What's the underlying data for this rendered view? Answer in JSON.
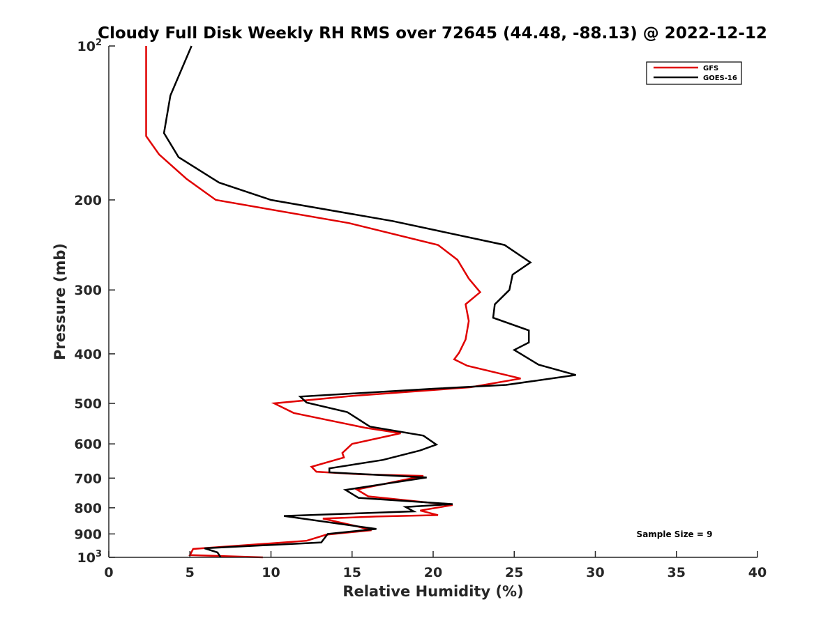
{
  "chart_data": {
    "type": "line",
    "title": "Cloudy Full Disk Weekly RH RMS over 72645 (44.48, -88.13) @ 2022-12-12",
    "xlabel": "Relative Humidity (%)",
    "ylabel": "Pressure (mb)",
    "xlim": [
      0,
      40
    ],
    "ylim": [
      100,
      1000
    ],
    "y_scale": "log",
    "y_reversed": true,
    "grid": false,
    "legend_position": "top-right",
    "x_ticks": [
      {
        "value": 0,
        "label": "0"
      },
      {
        "value": 5,
        "label": "5"
      },
      {
        "value": 10,
        "label": "10"
      },
      {
        "value": 15,
        "label": "15"
      },
      {
        "value": 20,
        "label": "20"
      },
      {
        "value": 25,
        "label": "25"
      },
      {
        "value": 30,
        "label": "30"
      },
      {
        "value": 35,
        "label": "35"
      },
      {
        "value": 40,
        "label": "40"
      }
    ],
    "y_ticks": [
      {
        "value": 100,
        "base": "10",
        "exp": "2"
      },
      {
        "value": 200,
        "label": "200"
      },
      {
        "value": 300,
        "label": "300"
      },
      {
        "value": 400,
        "label": "400"
      },
      {
        "value": 500,
        "label": "500"
      },
      {
        "value": 600,
        "label": "600"
      },
      {
        "value": 700,
        "label": "700"
      },
      {
        "value": 800,
        "label": "800"
      },
      {
        "value": 900,
        "label": "900"
      },
      {
        "value": 1000,
        "base": "10",
        "exp": "3"
      }
    ],
    "annotation": "Sample Size = 9",
    "series": [
      {
        "name": "GFS",
        "color": "#e00000",
        "points": [
          [
            2.3,
            100
          ],
          [
            2.3,
            125
          ],
          [
            2.3,
            150
          ],
          [
            3.1,
            163
          ],
          [
            4.8,
            182
          ],
          [
            6.6,
            200
          ],
          [
            14.8,
            222
          ],
          [
            20.3,
            245
          ],
          [
            21.5,
            262
          ],
          [
            22.2,
            285
          ],
          [
            22.9,
            303
          ],
          [
            22.0,
            320
          ],
          [
            22.2,
            345
          ],
          [
            22.0,
            375
          ],
          [
            21.6,
            398
          ],
          [
            21.3,
            410
          ],
          [
            22.1,
            422
          ],
          [
            25.4,
            447
          ],
          [
            22.3,
            465
          ],
          [
            14.8,
            484
          ],
          [
            10.2,
            500
          ],
          [
            11.4,
            522
          ],
          [
            15.8,
            558
          ],
          [
            18.0,
            572
          ],
          [
            15.0,
            600
          ],
          [
            14.4,
            625
          ],
          [
            14.5,
            638
          ],
          [
            12.5,
            665
          ],
          [
            12.8,
            680
          ],
          [
            15.5,
            688
          ],
          [
            19.4,
            693
          ],
          [
            15.3,
            737
          ],
          [
            16.0,
            760
          ],
          [
            21.2,
            790
          ],
          [
            19.2,
            810
          ],
          [
            20.3,
            827
          ],
          [
            16.5,
            832
          ],
          [
            13.2,
            840
          ],
          [
            15.2,
            868
          ],
          [
            16.2,
            885
          ],
          [
            13.4,
            903
          ],
          [
            12.2,
            928
          ],
          [
            6.2,
            958
          ],
          [
            5.2,
            963
          ],
          [
            5.0,
            990
          ],
          [
            9.5,
            1000
          ]
        ]
      },
      {
        "name": "GOES-16",
        "color": "#000000",
        "points": [
          [
            5.1,
            100
          ],
          [
            3.8,
            125
          ],
          [
            3.4,
            148
          ],
          [
            4.3,
            165
          ],
          [
            6.8,
            185
          ],
          [
            10.0,
            200
          ],
          [
            17.5,
            220
          ],
          [
            24.4,
            245
          ],
          [
            26.0,
            265
          ],
          [
            24.9,
            280
          ],
          [
            24.7,
            300
          ],
          [
            23.8,
            320
          ],
          [
            23.7,
            340
          ],
          [
            25.9,
            360
          ],
          [
            25.9,
            380
          ],
          [
            25.0,
            393
          ],
          [
            26.5,
            420
          ],
          [
            28.8,
            440
          ],
          [
            24.5,
            460
          ],
          [
            20.0,
            468
          ],
          [
            11.8,
            485
          ],
          [
            12.2,
            498
          ],
          [
            14.7,
            520
          ],
          [
            16.1,
            555
          ],
          [
            19.4,
            578
          ],
          [
            20.2,
            602
          ],
          [
            19.2,
            618
          ],
          [
            16.9,
            645
          ],
          [
            13.6,
            670
          ],
          [
            13.6,
            682
          ],
          [
            19.6,
            698
          ],
          [
            14.6,
            738
          ],
          [
            15.4,
            765
          ],
          [
            21.2,
            787
          ],
          [
            18.3,
            797
          ],
          [
            18.8,
            813
          ],
          [
            10.8,
            830
          ],
          [
            16.5,
            880
          ],
          [
            13.5,
            900
          ],
          [
            13.1,
            935
          ],
          [
            5.9,
            960
          ],
          [
            6.7,
            978
          ],
          [
            6.9,
            1000
          ]
        ]
      }
    ]
  }
}
